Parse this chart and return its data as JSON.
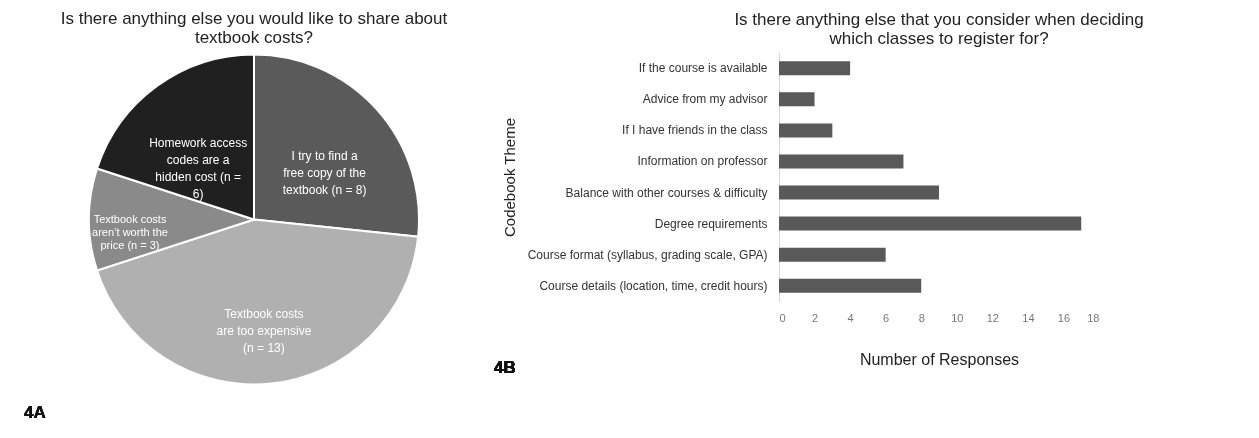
{
  "chart_data": [
    {
      "type": "pie",
      "title": "Is there anything else you would like to share about textbook costs?",
      "categories": [
        "I try to find a free copy of the textbook (n = 8)",
        "Textbook costs are too expensive (n = 13)",
        "Textbook costs aren’t worth the price (n = 3)",
        "Homework access codes are a hidden cost (n = 6)"
      ],
      "values": [
        8,
        13,
        3,
        6
      ],
      "colors": [
        "#5a5a5a",
        "#b0b0b0",
        "#8a8a8a",
        "#202020"
      ],
      "legend": false,
      "annotations": [
        "4A"
      ]
    },
    {
      "type": "bar",
      "orientation": "horizontal",
      "title": "Is there anything else that you consider when deciding which classes to register for?",
      "categories": [
        "If the course is available",
        "Advice from my advisor",
        "If I have friends in the class",
        "Information on professor",
        "Balance with other courses & difficulty",
        "Degree requirements",
        "Course format (syllabus, grading scale, GPA)",
        "Course details (location, time, credit hours)"
      ],
      "values": [
        4,
        2,
        3,
        7,
        9,
        17,
        6,
        8
      ],
      "color": "#595959",
      "xlim": [
        0,
        18
      ],
      "xticks": [
        0,
        2,
        4,
        6,
        8,
        10,
        12,
        14,
        16,
        18
      ],
      "xlabel": "Number of Responses",
      "ylabel": "Codebook Theme",
      "grid": false,
      "legend": false,
      "annotations": [
        "4B"
      ]
    }
  ]
}
